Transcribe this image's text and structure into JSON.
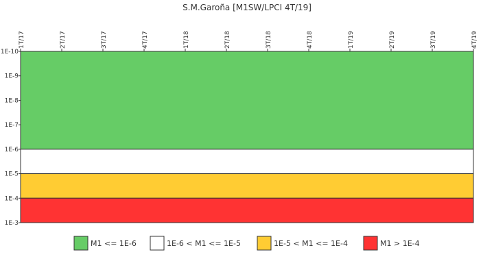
{
  "chart_data": {
    "type": "area",
    "title": "S.M.Garoña [M1SW/LPCI 4T/19]",
    "xlabel": "",
    "ylabel": "",
    "x_categories": [
      "1T/17",
      "2T/17",
      "3T/17",
      "4T/17",
      "1T/18",
      "2T/18",
      "3T/18",
      "4T/18",
      "1T/19",
      "2T/19",
      "3T/19",
      "4T/19"
    ],
    "y_scale": "log",
    "y_ticks": [
      "1E-10",
      "1E-9",
      "1E-8",
      "1E-7",
      "1E-6",
      "1E-5",
      "1E-4",
      "1E-3"
    ],
    "ylim": [
      1e-10,
      0.001
    ],
    "y_inverted": true,
    "grid": false,
    "legend_position": "bottom",
    "bands": [
      {
        "label": "M1 <= 1E-6",
        "from": 1e-10,
        "to": 1e-06,
        "color": "#66cc66"
      },
      {
        "label": "1E-6 < M1 <= 1E-5",
        "from": 1e-06,
        "to": 1e-05,
        "color": "#ffffff"
      },
      {
        "label": "1E-5 < M1 <= 1E-4",
        "from": 1e-05,
        "to": 0.0001,
        "color": "#ffcc33"
      },
      {
        "label": "M1 > 1E-4",
        "from": 0.0001,
        "to": 0.001,
        "color": "#ff3333"
      }
    ]
  }
}
